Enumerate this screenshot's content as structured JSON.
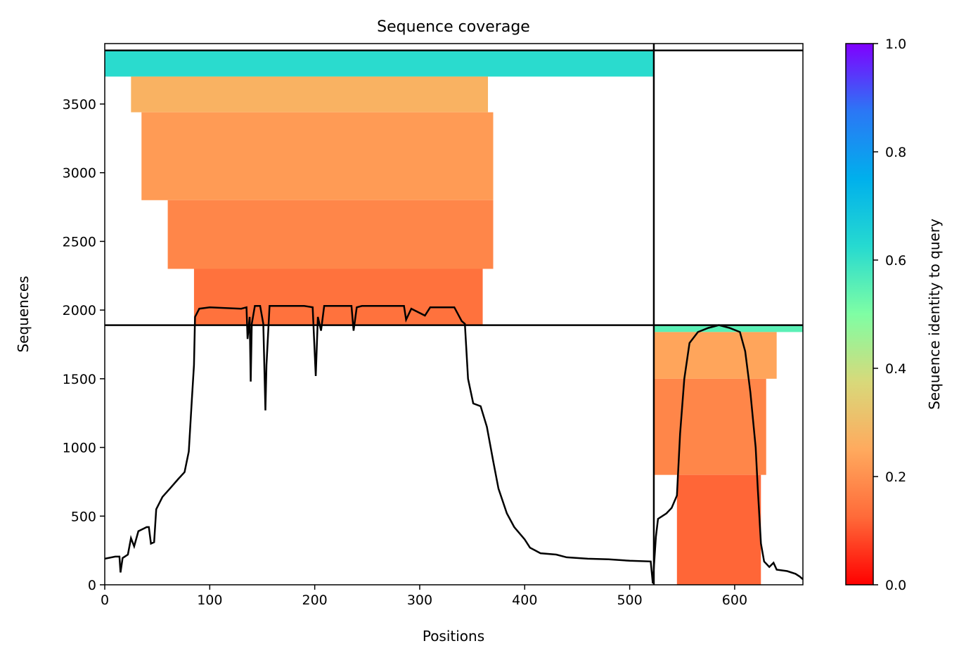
{
  "chart_data": {
    "type": "heatmap",
    "title": "Sequence coverage",
    "xlabel": "Positions",
    "ylabel": "Sequences",
    "colorbar_label": "Sequence identity to query",
    "xlim": [
      0,
      665
    ],
    "ylim": [
      0,
      3940
    ],
    "x_ticks": [
      0,
      100,
      200,
      300,
      400,
      500,
      600
    ],
    "y_ticks": [
      0,
      500,
      1000,
      1500,
      2000,
      2500,
      3000,
      3500
    ],
    "colorbar_ticks": [
      "0.0",
      "0.2",
      "0.4",
      "0.6",
      "0.8",
      "1.0"
    ],
    "colormap": [
      "#ff0000",
      "#ff6a39",
      "#ffaa5e",
      "#d8d97a",
      "#7ffea4",
      "#26dad0",
      "#00b0ec",
      "#2b77f5",
      "#8000ff"
    ],
    "domain_boundary_x": 523,
    "horizontal_boundaries_y": [
      1890,
      3890
    ],
    "coverage_blocks": [
      {
        "x0": 0,
        "x1": 523,
        "y0": 3700,
        "y1": 3890,
        "identity": 0.62
      },
      {
        "x0": 25,
        "x1": 365,
        "y0": 3440,
        "y1": 3700,
        "identity": 0.27
      },
      {
        "x0": 35,
        "x1": 370,
        "y0": 2800,
        "y1": 3440,
        "identity": 0.22
      },
      {
        "x0": 60,
        "x1": 370,
        "y0": 2300,
        "y1": 2800,
        "identity": 0.18
      },
      {
        "x0": 85,
        "x1": 360,
        "y0": 1890,
        "y1": 2300,
        "identity": 0.14
      },
      {
        "x0": 523,
        "x1": 665,
        "y0": 1840,
        "y1": 1890,
        "identity": 0.55
      },
      {
        "x0": 523,
        "x1": 640,
        "y0": 1500,
        "y1": 1840,
        "identity": 0.24
      },
      {
        "x0": 523,
        "x1": 630,
        "y0": 800,
        "y1": 1500,
        "identity": 0.18
      },
      {
        "x0": 545,
        "x1": 625,
        "y0": 0,
        "y1": 800,
        "identity": 0.12
      }
    ],
    "coverage_line": [
      [
        0,
        190
      ],
      [
        10,
        205
      ],
      [
        14,
        205
      ],
      [
        15,
        90
      ],
      [
        17,
        195
      ],
      [
        22,
        220
      ],
      [
        25,
        340
      ],
      [
        28,
        280
      ],
      [
        32,
        390
      ],
      [
        40,
        420
      ],
      [
        42,
        420
      ],
      [
        44,
        300
      ],
      [
        47,
        310
      ],
      [
        49,
        550
      ],
      [
        55,
        640
      ],
      [
        62,
        700
      ],
      [
        70,
        770
      ],
      [
        76,
        820
      ],
      [
        80,
        970
      ],
      [
        83,
        1350
      ],
      [
        85,
        1600
      ],
      [
        86,
        1950
      ],
      [
        90,
        2010
      ],
      [
        100,
        2020
      ],
      [
        130,
        2010
      ],
      [
        135,
        2020
      ],
      [
        136,
        1790
      ],
      [
        138,
        1950
      ],
      [
        139,
        1480
      ],
      [
        140,
        1900
      ],
      [
        143,
        2030
      ],
      [
        148,
        2030
      ],
      [
        151,
        1900
      ],
      [
        153,
        1270
      ],
      [
        154,
        1600
      ],
      [
        157,
        2030
      ],
      [
        190,
        2030
      ],
      [
        198,
        2020
      ],
      [
        201,
        1520
      ],
      [
        203,
        1950
      ],
      [
        206,
        1850
      ],
      [
        209,
        2030
      ],
      [
        235,
        2030
      ],
      [
        237,
        1850
      ],
      [
        240,
        2020
      ],
      [
        245,
        2030
      ],
      [
        285,
        2030
      ],
      [
        287,
        1930
      ],
      [
        292,
        2010
      ],
      [
        305,
        1960
      ],
      [
        310,
        2020
      ],
      [
        333,
        2020
      ],
      [
        340,
        1920
      ],
      [
        343,
        1900
      ],
      [
        346,
        1500
      ],
      [
        351,
        1320
      ],
      [
        358,
        1300
      ],
      [
        364,
        1150
      ],
      [
        370,
        900
      ],
      [
        375,
        700
      ],
      [
        383,
        520
      ],
      [
        390,
        420
      ],
      [
        400,
        330
      ],
      [
        405,
        270
      ],
      [
        415,
        230
      ],
      [
        430,
        220
      ],
      [
        440,
        200
      ],
      [
        460,
        190
      ],
      [
        480,
        185
      ],
      [
        500,
        175
      ],
      [
        520,
        170
      ],
      [
        522,
        10
      ],
      [
        525,
        350
      ],
      [
        527,
        480
      ],
      [
        535,
        520
      ],
      [
        540,
        560
      ],
      [
        545,
        650
      ],
      [
        548,
        1100
      ],
      [
        552,
        1500
      ],
      [
        557,
        1760
      ],
      [
        565,
        1840
      ],
      [
        575,
        1870
      ],
      [
        585,
        1890
      ],
      [
        595,
        1870
      ],
      [
        605,
        1840
      ],
      [
        610,
        1700
      ],
      [
        615,
        1400
      ],
      [
        620,
        1000
      ],
      [
        622,
        700
      ],
      [
        625,
        300
      ],
      [
        628,
        170
      ],
      [
        633,
        130
      ],
      [
        637,
        160
      ],
      [
        640,
        110
      ],
      [
        650,
        100
      ],
      [
        658,
        80
      ],
      [
        662,
        60
      ],
      [
        665,
        40
      ]
    ]
  }
}
